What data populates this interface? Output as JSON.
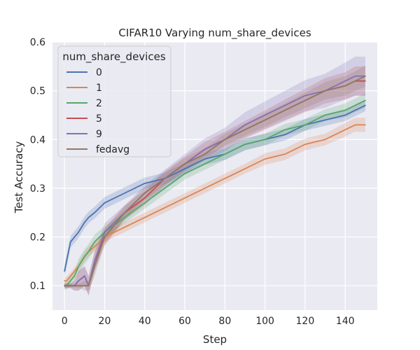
{
  "chart_data": {
    "type": "line",
    "title": "CIFAR10 Varying num_share_devices",
    "xlabel": "Step",
    "ylabel": "Test Accuracy",
    "xlim": [
      -6,
      156
    ],
    "ylim": [
      0.05,
      0.6
    ],
    "x_ticks": [
      0,
      20,
      40,
      60,
      80,
      100,
      120,
      140
    ],
    "y_ticks": [
      0.1,
      0.2,
      0.3,
      0.4,
      0.5,
      0.6
    ],
    "x_tick_labels": [
      "0",
      "20",
      "40",
      "60",
      "80",
      "100",
      "120",
      "140"
    ],
    "y_tick_labels": [
      "0.1",
      "0.2",
      "0.3",
      "0.4",
      "0.5",
      "0.6"
    ],
    "grid": true,
    "confidence_bands": true,
    "legend": {
      "title": "num_share_devices",
      "position": "top-left"
    },
    "x": [
      0,
      1,
      3,
      5,
      7,
      10,
      12,
      15,
      20,
      30,
      40,
      50,
      60,
      70,
      80,
      90,
      100,
      110,
      120,
      130,
      140,
      145,
      150
    ],
    "series": [
      {
        "name": "0",
        "color": "#4c72b0",
        "values": [
          0.13,
          0.15,
          0.19,
          0.2,
          0.21,
          0.23,
          0.24,
          0.25,
          0.27,
          0.29,
          0.31,
          0.32,
          0.34,
          0.36,
          0.37,
          0.39,
          0.4,
          0.41,
          0.43,
          0.44,
          0.45,
          0.46,
          0.47
        ],
        "band": [
          0.012,
          0.012,
          0.012,
          0.012,
          0.012,
          0.012,
          0.012,
          0.012,
          0.012,
          0.012,
          0.012,
          0.012,
          0.012,
          0.012,
          0.012,
          0.012,
          0.012,
          0.012,
          0.012,
          0.012,
          0.012,
          0.012,
          0.012
        ]
      },
      {
        "name": "1",
        "color": "#dd8452",
        "values": [
          0.11,
          0.11,
          0.12,
          0.13,
          0.14,
          0.16,
          0.17,
          0.18,
          0.2,
          0.22,
          0.24,
          0.26,
          0.28,
          0.3,
          0.32,
          0.34,
          0.36,
          0.37,
          0.39,
          0.4,
          0.42,
          0.43,
          0.43
        ],
        "band": [
          0.008,
          0.008,
          0.008,
          0.008,
          0.008,
          0.01,
          0.01,
          0.01,
          0.01,
          0.01,
          0.01,
          0.01,
          0.01,
          0.01,
          0.01,
          0.01,
          0.012,
          0.012,
          0.012,
          0.012,
          0.014,
          0.014,
          0.015
        ]
      },
      {
        "name": "2",
        "color": "#55a868",
        "values": [
          0.1,
          0.1,
          0.11,
          0.12,
          0.14,
          0.16,
          0.17,
          0.19,
          0.21,
          0.24,
          0.27,
          0.3,
          0.33,
          0.35,
          0.37,
          0.39,
          0.4,
          0.42,
          0.43,
          0.45,
          0.46,
          0.47,
          0.48
        ],
        "band": [
          0.008,
          0.008,
          0.01,
          0.01,
          0.015,
          0.015,
          0.015,
          0.015,
          0.012,
          0.012,
          0.012,
          0.012,
          0.012,
          0.012,
          0.012,
          0.012,
          0.012,
          0.012,
          0.012,
          0.012,
          0.014,
          0.014,
          0.015
        ]
      },
      {
        "name": "5",
        "color": "#c44e52",
        "values": [
          0.1,
          0.1,
          0.1,
          0.1,
          0.11,
          0.12,
          0.1,
          0.15,
          0.2,
          0.25,
          0.28,
          0.32,
          0.35,
          0.38,
          0.4,
          0.42,
          0.44,
          0.46,
          0.48,
          0.5,
          0.51,
          0.52,
          0.52
        ],
        "band": [
          0.005,
          0.005,
          0.005,
          0.01,
          0.02,
          0.02,
          0.02,
          0.02,
          0.018,
          0.015,
          0.015,
          0.015,
          0.015,
          0.015,
          0.016,
          0.018,
          0.02,
          0.022,
          0.024,
          0.026,
          0.028,
          0.03,
          0.03
        ]
      },
      {
        "name": "9",
        "color": "#8172b3",
        "values": [
          0.1,
          0.1,
          0.1,
          0.1,
          0.11,
          0.12,
          0.1,
          0.15,
          0.21,
          0.25,
          0.29,
          0.32,
          0.35,
          0.38,
          0.4,
          0.43,
          0.45,
          0.47,
          0.49,
          0.5,
          0.52,
          0.53,
          0.53
        ],
        "band": [
          0.005,
          0.005,
          0.005,
          0.01,
          0.02,
          0.02,
          0.02,
          0.02,
          0.018,
          0.015,
          0.016,
          0.018,
          0.02,
          0.022,
          0.024,
          0.026,
          0.028,
          0.03,
          0.032,
          0.035,
          0.038,
          0.04,
          0.04
        ]
      },
      {
        "name": "fedavg",
        "color": "#937860",
        "values": [
          0.1,
          0.1,
          0.1,
          0.1,
          0.1,
          0.1,
          0.1,
          0.14,
          0.2,
          0.25,
          0.29,
          0.32,
          0.35,
          0.37,
          0.4,
          0.42,
          0.44,
          0.46,
          0.48,
          0.5,
          0.51,
          0.52,
          0.53
        ],
        "band": [
          0.004,
          0.004,
          0.004,
          0.004,
          0.004,
          0.01,
          0.01,
          0.02,
          0.015,
          0.012,
          0.012,
          0.012,
          0.012,
          0.012,
          0.012,
          0.012,
          0.014,
          0.014,
          0.016,
          0.018,
          0.02,
          0.02,
          0.022
        ]
      }
    ]
  }
}
